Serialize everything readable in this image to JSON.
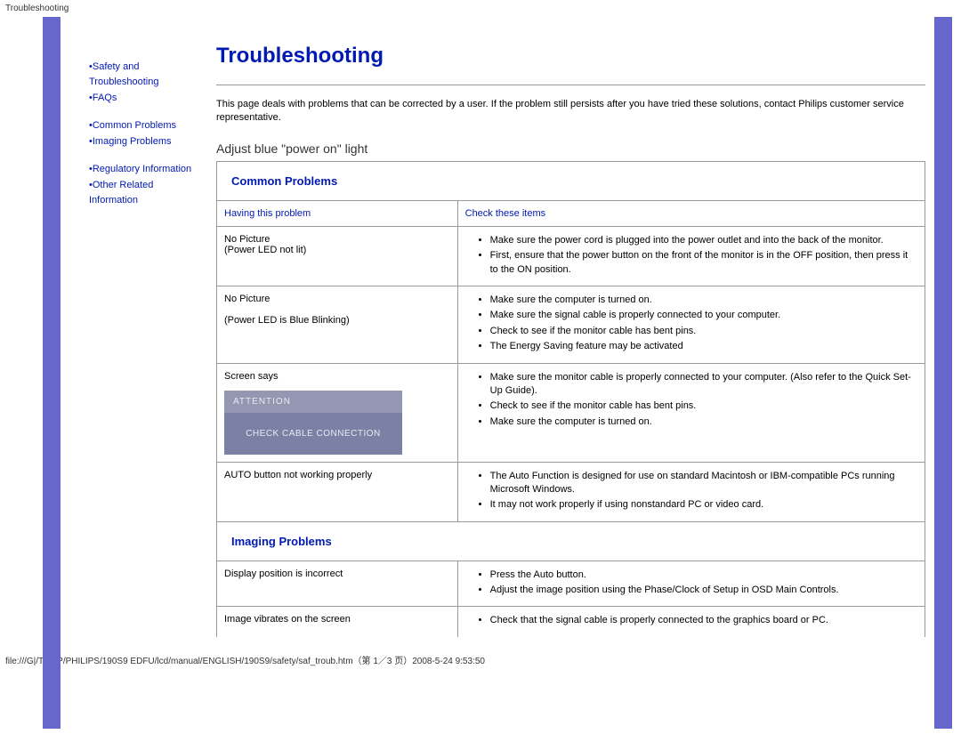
{
  "header": {
    "label": "Troubleshooting"
  },
  "sidebar": {
    "items": [
      {
        "bullet": "•",
        "label": "Safety and Troubleshooting"
      },
      {
        "bullet": "•",
        "label": "FAQs"
      },
      {
        "bullet": "•",
        "label": "Common Problems"
      },
      {
        "bullet": "•",
        "label": "Imaging Problems"
      },
      {
        "bullet": "•",
        "label": "Regulatory Information"
      },
      {
        "bullet": "•",
        "label": "Other Related Information"
      }
    ]
  },
  "main": {
    "title": "Troubleshooting",
    "intro": "This page deals with problems that can be corrected by a user. If the problem still persists after you have tried these solutions, contact Philips customer service representative.",
    "subtitle": "Adjust blue \"power on\" light",
    "common_header": "Common Problems",
    "imaging_header": "Imaging Problems",
    "table": {
      "col_problem": "Having this problem",
      "col_check": "Check these items",
      "rows": [
        {
          "problem_line1": "No Picture",
          "problem_line2": "(Power LED not lit)",
          "checks": [
            "Make sure the power cord is plugged into the power outlet and into the back of the monitor.",
            "First, ensure that the power button on the front of the monitor is in the OFF position, then press it to the ON position."
          ]
        },
        {
          "problem_line1": "No Picture",
          "problem_line2": "(Power LED is Blue Blinking)",
          "checks": [
            "Make sure the computer is turned on.",
            "Make sure the signal cable is properly connected to your computer.",
            "Check to see if the monitor cable has bent pins.",
            "The Energy Saving feature may be activated"
          ]
        },
        {
          "problem_line1": "Screen says",
          "attention_head": "ATTENTION",
          "attention_body": "CHECK CABLE CONNECTION",
          "checks": [
            "Make sure the monitor cable is properly connected to your computer. (Also refer to the Quick Set-Up Guide).",
            "Check to see if the monitor cable has bent pins.",
            "Make sure the computer is turned on."
          ]
        },
        {
          "problem_line1": "AUTO button not working properly",
          "checks": [
            "The Auto Function is designed for use on standard Macintosh or IBM-compatible PCs running Microsoft Windows.",
            "It may not work properly if using nonstandard PC or video card."
          ]
        }
      ],
      "imaging_rows": [
        {
          "problem_line1": "Display position is incorrect",
          "checks": [
            "Press the Auto button.",
            "Adjust the image position using the Phase/Clock of Setup in OSD Main Controls."
          ]
        },
        {
          "problem_line1": "Image vibrates on the screen",
          "checks": [
            "Check that the signal cable is properly connected to the graphics board or PC."
          ]
        }
      ]
    }
  },
  "footer": {
    "text": "file:///G|/TEMP/PHILIPS/190S9 EDFU/lcd/manual/ENGLISH/190S9/safety/saf_troub.htm（第 1／3 页）2008-5-24 9:53:50"
  },
  "colors": {
    "link": "#0019b3",
    "stripe": "#6666cc",
    "border": "#999999",
    "attention_head_bg": "#9397b2",
    "attention_body_bg": "#7c80a5"
  }
}
